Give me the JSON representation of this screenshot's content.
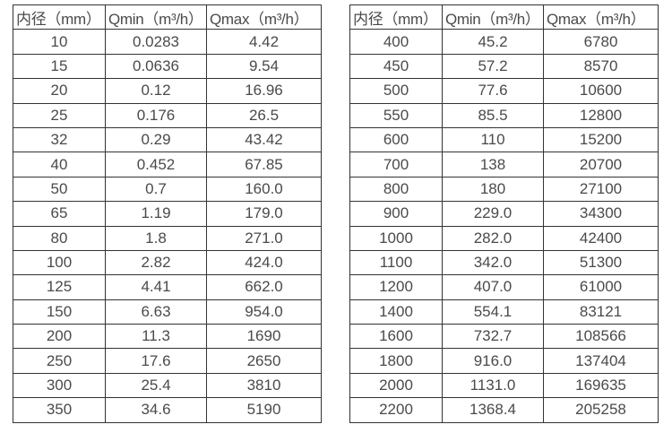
{
  "page": {
    "background_color": "#ffffff",
    "text_color": "#4a4a4a",
    "border_color": "#333333"
  },
  "tables": [
    {
      "id": "small-diameter-flow-table",
      "headers": [
        "内径（mm）",
        "Qmin（m³/h）",
        "Qmax（m³/h）"
      ],
      "rows": [
        [
          "10",
          "0.0283",
          "4.42"
        ],
        [
          "15",
          "0.0636",
          "9.54"
        ],
        [
          "20",
          "0.12",
          "16.96"
        ],
        [
          "25",
          "0.176",
          "26.5"
        ],
        [
          "32",
          "0.29",
          "43.42"
        ],
        [
          "40",
          "0.452",
          "67.85"
        ],
        [
          "50",
          "0.7",
          "160.0"
        ],
        [
          "65",
          "1.19",
          "179.0"
        ],
        [
          "80",
          "1.8",
          "271.0"
        ],
        [
          "100",
          "2.82",
          "424.0"
        ],
        [
          "125",
          "4.41",
          "662.0"
        ],
        [
          "150",
          "6.63",
          "954.0"
        ],
        [
          "200",
          "11.3",
          "1690"
        ],
        [
          "250",
          "17.6",
          "2650"
        ],
        [
          "300",
          "25.4",
          "3810"
        ],
        [
          "350",
          "34.6",
          "5190"
        ]
      ]
    },
    {
      "id": "large-diameter-flow-table",
      "headers": [
        "内径（mm）",
        "Qmin（m³/h）",
        "Qmax（m³/h）"
      ],
      "rows": [
        [
          "400",
          "45.2",
          "6780"
        ],
        [
          "450",
          "57.2",
          "8570"
        ],
        [
          "500",
          "77.6",
          "10600"
        ],
        [
          "550",
          "85.5",
          "12800"
        ],
        [
          "600",
          "110",
          "15200"
        ],
        [
          "700",
          "138",
          "20700"
        ],
        [
          "800",
          "180",
          "27100"
        ],
        [
          "900",
          "229.0",
          "34300"
        ],
        [
          "1000",
          "282.0",
          "42400"
        ],
        [
          "1100",
          "342.0",
          "51300"
        ],
        [
          "1200",
          "407.0",
          "61000"
        ],
        [
          "1400",
          "554.1",
          "83121"
        ],
        [
          "1600",
          "732.7",
          "108566"
        ],
        [
          "1800",
          "916.0",
          "137404"
        ],
        [
          "2000",
          "1131.0",
          "169635"
        ],
        [
          "2200",
          "1368.4",
          "205258"
        ]
      ]
    }
  ]
}
